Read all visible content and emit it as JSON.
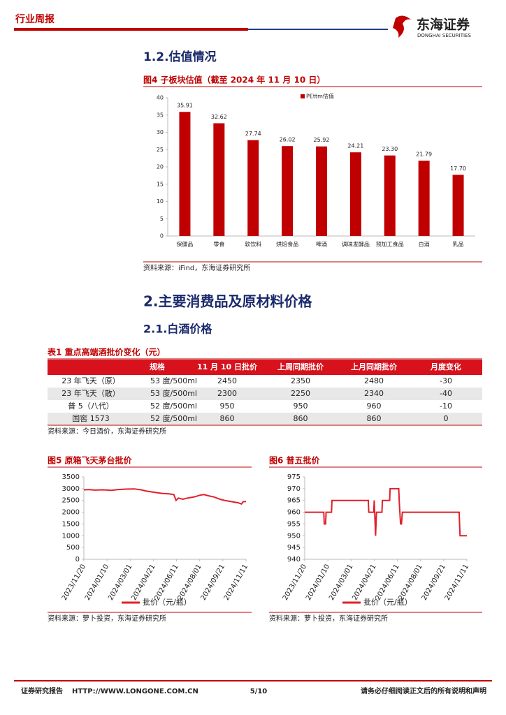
{
  "header": {
    "tag": "行业周报",
    "logo_cn": "东海证券",
    "logo_en": "DONGHAI SECURITIES"
  },
  "section_1_2": "1.2.估值情况",
  "section_2": "2.主要消费品及原材料价格",
  "section_2_1": "2.1.白酒价格",
  "table": {
    "title": "表1  重点高端酒批价变化（元）",
    "columns": [
      "规格",
      "11 月 10 日批价",
      "上周同期批价",
      "上月同期批价",
      "月度变化"
    ],
    "rows": [
      [
        "23 年飞天（原）",
        "53 度/500ml",
        2450,
        2350,
        2480,
        -30
      ],
      [
        "23 年飞天（散）",
        "53 度/500ml",
        2300,
        2250,
        2340,
        -40
      ],
      [
        "普 5（八代）",
        "52 度/500ml",
        950,
        950,
        960,
        -10
      ],
      [
        "国窖 1573",
        "52 度/500ml",
        860,
        860,
        860,
        0
      ]
    ],
    "source": "资料来源：今日酒价，东海证券研究所"
  },
  "chart_data": [
    {
      "type": "bar",
      "title": "图4  子板块估值（截至 2024 年 11 月 10 日）",
      "categories": [
        "保健品",
        "零食",
        "软饮料",
        "烘焙食品",
        "啤酒",
        "调味发酵品",
        "预加工食品",
        "白酒",
        "乳品"
      ],
      "series": [
        {
          "name": "PEttm估值",
          "color": "#c00000",
          "values": [
            35.91,
            32.62,
            27.74,
            26.02,
            25.92,
            24.21,
            23.3,
            21.79,
            17.7
          ],
          "value_labels": [
            "35.91",
            "32.62",
            "27.74",
            "26.02",
            "25.92",
            "24.21",
            "23.30",
            "21.79",
            "17.70"
          ]
        }
      ],
      "ylim": [
        0,
        40
      ],
      "yticks": [
        0,
        5,
        10,
        15,
        20,
        25,
        30,
        35,
        40
      ],
      "legend": "top-right",
      "source": "资料来源：iFind，东海证券研究所"
    },
    {
      "type": "line",
      "title": "图5  原箱飞天茅台批价",
      "x": [
        "2023/11/20",
        "2023/12/01",
        "2023/12/15",
        "2024/01/01",
        "2024/01/20",
        "2024/02/01",
        "2024/02/20",
        "2024/03/10",
        "2024/03/25",
        "2024/04/05",
        "2024/04/21",
        "2024/05/10",
        "2024/05/25",
        "2024/06/05",
        "2024/06/10",
        "2024/06/15",
        "2024/06/25",
        "2024/07/05",
        "2024/07/20",
        "2024/08/01",
        "2024/08/10",
        "2024/08/20",
        "2024/09/01",
        "2024/09/15",
        "2024/09/25",
        "2024/10/10",
        "2024/10/25",
        "2024/11/01",
        "2024/11/05",
        "2024/11/11"
      ],
      "series": [
        {
          "name": "批价（元/瓶）",
          "color": "#e0202a",
          "values": [
            2950,
            2960,
            2940,
            2950,
            2930,
            2960,
            2980,
            2990,
            2950,
            2900,
            2850,
            2800,
            2780,
            2750,
            2500,
            2600,
            2550,
            2600,
            2650,
            2720,
            2750,
            2700,
            2650,
            2550,
            2500,
            2450,
            2400,
            2350,
            2450,
            2450
          ]
        }
      ],
      "xlim": [
        "2023/11/20",
        "2024/11/11"
      ],
      "xticks": [
        "2023/11/20",
        "2024/01/10",
        "2024/03/01",
        "2024/04/21",
        "2024/06/11",
        "2024/08/01",
        "2024/09/21",
        "2024/11/11"
      ],
      "ylim": [
        0,
        3500
      ],
      "yticks": [
        0,
        500,
        1000,
        1500,
        2000,
        2500,
        3000,
        3500
      ],
      "legend": "bottom",
      "source": "资料来源：萝卜投资，东海证券研究所"
    },
    {
      "type": "line",
      "title": "图6  普五批价",
      "x": [
        "2023/11/20",
        "2024/01/01",
        "2024/01/02",
        "2024/01/05",
        "2024/01/06",
        "2024/01/18",
        "2024/01/19",
        "2024/04/08",
        "2024/04/09",
        "2024/04/20",
        "2024/04/21",
        "2024/04/22",
        "2024/04/24",
        "2024/04/26",
        "2024/05/08",
        "2024/05/09",
        "2024/05/25",
        "2024/05/26",
        "2024/06/14",
        "2024/06/15",
        "2024/06/18",
        "2024/06/20",
        "2024/06/22",
        "2024/10/25",
        "2024/10/27",
        "2024/11/11"
      ],
      "series": [
        {
          "name": "批价（元/瓶）",
          "color": "#e0202a",
          "values": [
            960,
            960,
            955,
            955,
            960,
            960,
            965,
            965,
            960,
            960,
            965,
            960,
            950,
            960,
            960,
            965,
            965,
            970,
            970,
            965,
            955,
            955,
            960,
            960,
            950,
            950
          ]
        }
      ],
      "xlim": [
        "2023/11/20",
        "2024/11/11"
      ],
      "xticks": [
        "2023/11/20",
        "2024/01/10",
        "2024/03/01",
        "2024/04/21",
        "2024/06/11",
        "2024/08/01",
        "2024/09/21",
        "2024/11/11"
      ],
      "ylim": [
        940,
        975
      ],
      "yticks": [
        940,
        945,
        950,
        955,
        960,
        965,
        970,
        975
      ],
      "legend": "bottom",
      "source": "资料来源：萝卜投资，东海证券研究所"
    }
  ],
  "footer": {
    "left": "证券研究报告",
    "url": "HTTP://WWW.LONGONE.COM.CN",
    "page": "5/10",
    "right": "请务必仔细阅读正文后的所有说明和声明"
  }
}
